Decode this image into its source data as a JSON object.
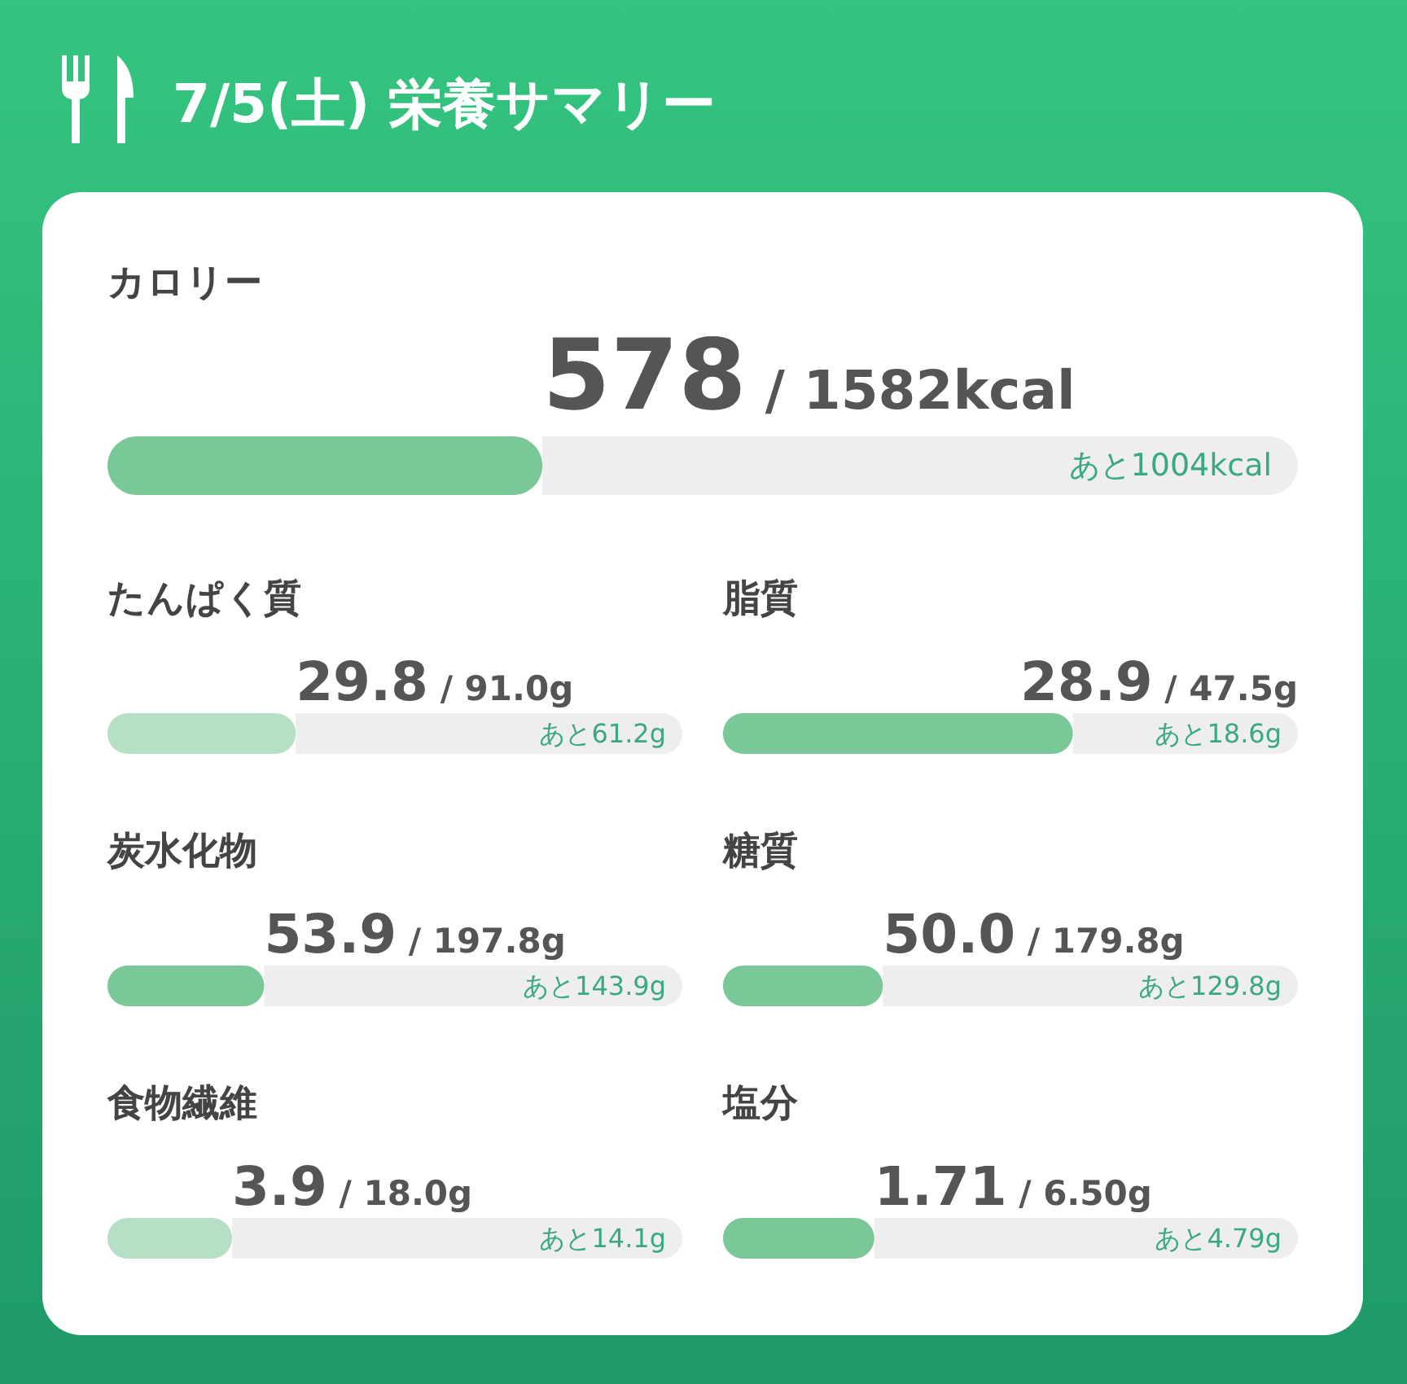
{
  "chart_data": [
    {
      "type": "other",
      "title": "7/5(土) 栄養サマリー"
    },
    {
      "type": "bar",
      "orientation": "horizontal",
      "stacked": true,
      "title": "カロリー",
      "categories": [
        null
      ],
      "tick_labels": false,
      "totals": [
        "/ 1582kcal"
      ],
      "series": [
        {
          "color": "#7ac798",
          "values": [
            578
          ],
          "value_labels": [
            "578"
          ]
        },
        {
          "color": "#eeeeee",
          "values": [
            1004
          ],
          "value_labels": [
            "あと1004kcal"
          ]
        }
      ]
    },
    {
      "type": "bar",
      "orientation": "horizontal",
      "stacked": true,
      "title": "たんぱく質",
      "categories": [
        null
      ],
      "tick_labels": false,
      "totals": [
        "/ 91.0g"
      ],
      "series": [
        {
          "color": "#b5e0c6",
          "values": [
            29.8
          ],
          "value_labels": [
            "29.8"
          ]
        },
        {
          "color": "#eeeeee",
          "values": [
            61.2
          ],
          "value_labels": [
            "あと61.2g"
          ]
        }
      ]
    },
    {
      "type": "bar",
      "orientation": "horizontal",
      "stacked": true,
      "title": "脂質",
      "categories": [
        null
      ],
      "tick_labels": false,
      "totals": [
        "/ 47.5g"
      ],
      "series": [
        {
          "color": "#7ac798",
          "values": [
            28.9
          ],
          "value_labels": [
            "28.9"
          ]
        },
        {
          "color": "#eeeeee",
          "values": [
            18.6
          ],
          "value_labels": [
            "あと18.6g"
          ]
        }
      ]
    },
    {
      "type": "bar",
      "orientation": "horizontal",
      "stacked": true,
      "title": "炭水化物",
      "categories": [
        null
      ],
      "tick_labels": false,
      "totals": [
        "/ 197.8g"
      ],
      "series": [
        {
          "color": "#7ac798",
          "values": [
            53.9
          ],
          "value_labels": [
            "53.9"
          ]
        },
        {
          "color": "#eeeeee",
          "values": [
            143.9
          ],
          "value_labels": [
            "あと143.9g"
          ]
        }
      ]
    },
    {
      "type": "bar",
      "orientation": "horizontal",
      "stacked": true,
      "title": "糖質",
      "categories": [
        null
      ],
      "tick_labels": false,
      "totals": [
        "/ 179.8g"
      ],
      "series": [
        {
          "color": "#7ac798",
          "values": [
            50.0
          ],
          "value_labels": [
            "50.0"
          ]
        },
        {
          "color": "#eeeeee",
          "values": [
            129.8
          ],
          "value_labels": [
            "あと129.8g"
          ]
        }
      ]
    },
    {
      "type": "bar",
      "orientation": "horizontal",
      "stacked": true,
      "title": "食物繊維",
      "categories": [
        null
      ],
      "tick_labels": false,
      "totals": [
        "/ 18.0g"
      ],
      "series": [
        {
          "color": "#b5e0c6",
          "values": [
            3.9
          ],
          "value_labels": [
            "3.9"
          ]
        },
        {
          "color": "#eeeeee",
          "values": [
            14.1
          ],
          "value_labels": [
            "あと14.1g"
          ]
        }
      ]
    },
    {
      "type": "bar",
      "orientation": "horizontal",
      "stacked": true,
      "title": "塩分",
      "categories": [
        null
      ],
      "tick_labels": false,
      "totals": [
        "/ 6.50g"
      ],
      "series": [
        {
          "color": "#7ac798",
          "values": [
            1.71
          ],
          "value_labels": [
            "1.71"
          ]
        },
        {
          "color": "#eeeeee",
          "values": [
            4.79
          ],
          "value_labels": [
            "あと4.79g"
          ]
        }
      ]
    }
  ]
}
